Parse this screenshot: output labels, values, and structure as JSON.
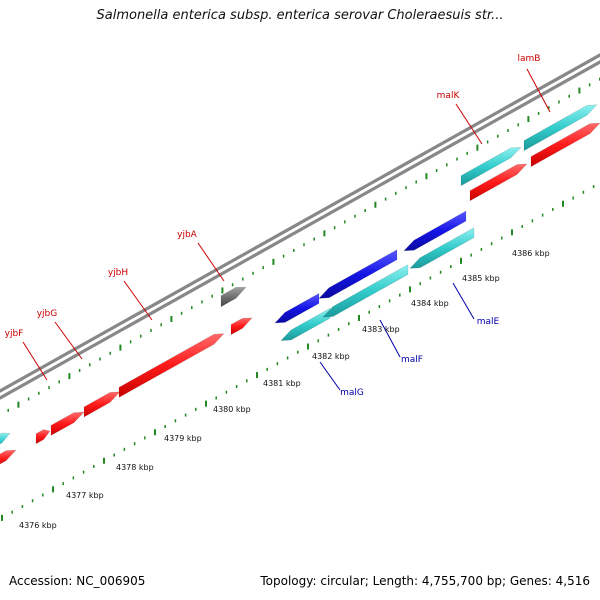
{
  "map": {
    "title": "Salmonella enterica subsp. enterica serovar Choleraesuis str...",
    "accession_text": "Accession: NC_006905",
    "summary_text": "Topology: circular; Length: 4,755,700 bp; Genes: 4,516"
  },
  "colors": {
    "forward_gene": "#ff1a1a",
    "reverse_gene_dark": "#1414e6",
    "reverse_gene_cyan": "#33cccc",
    "hypothetical_gene": "#707070",
    "forward_label": "#cc0000",
    "reverse_label": "#0000aa",
    "tick": "#228822",
    "backbone": "#888888"
  },
  "scale": {
    "unit": "kbp",
    "labels": [
      "4376 kbp",
      "4377 kbp",
      "4378 kbp",
      "4379 kbp",
      "4380 kbp",
      "4381 kbp",
      "4382 kbp",
      "4383 kbp",
      "4384 kbp",
      "4385 kbp",
      "4386 kbp"
    ]
  },
  "genes": [
    {
      "name": "yjbF",
      "strand": "forward"
    },
    {
      "name": "yjbG",
      "strand": "forward"
    },
    {
      "name": "yjbH",
      "strand": "forward"
    },
    {
      "name": "yjbA",
      "strand": "forward"
    },
    {
      "name": "malK",
      "strand": "forward"
    },
    {
      "name": "lamB",
      "strand": "forward"
    },
    {
      "name": "malG",
      "strand": "reverse"
    },
    {
      "name": "malF",
      "strand": "reverse"
    },
    {
      "name": "malE",
      "strand": "reverse"
    }
  ]
}
